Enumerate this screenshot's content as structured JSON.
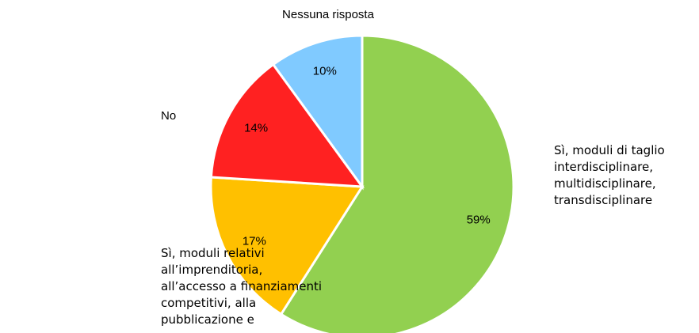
{
  "chart_data": {
    "type": "pie",
    "categories": [
      "Sì, moduli di taglio interdisciplinare, multidisciplinare, transdisciplinare",
      "Sì, moduli relativi all’imprenditoria, all’accesso a finanziamenti competitivi, alla pubblicazione e",
      "No",
      "Nessuna risposta"
    ],
    "values": [
      59,
      17,
      14,
      10
    ],
    "value_labels": [
      "59%",
      "17%",
      "14%",
      "10%"
    ],
    "colors": [
      "#92d050",
      "#ffc000",
      "#ff2121",
      "#80caff"
    ]
  }
}
